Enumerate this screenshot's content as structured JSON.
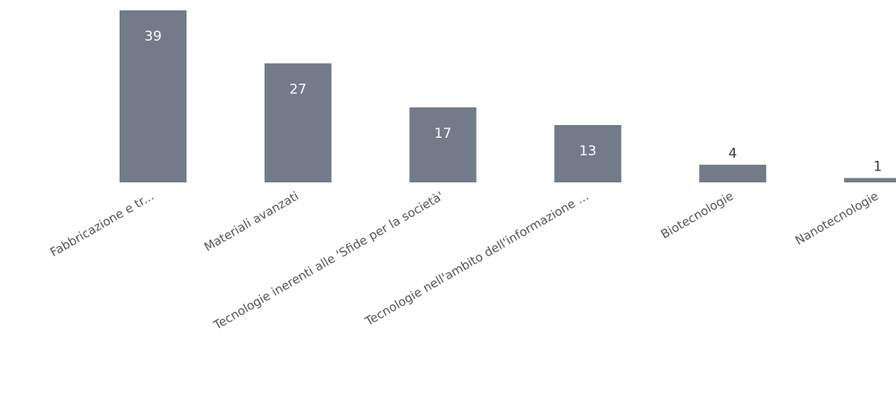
{
  "chart_data": {
    "type": "bar",
    "title": "",
    "xlabel": "",
    "ylabel": "",
    "categories": [
      "Fabbricazione e tr...",
      "Materiali avanzati",
      "Tecnologie inerenti alle 'Sfide per la società'",
      "Tecnologie nell'ambito dell'informazione ...",
      "Biotecnologie",
      "Nanotecnologie"
    ],
    "values": [
      39,
      27,
      17,
      13,
      4,
      1
    ],
    "ylim": [
      0,
      39
    ],
    "grid": false,
    "legend": "none",
    "bar_color": "#737b89",
    "label_color": "#3c3c3c",
    "inside_label_color": "#ffffff",
    "tick_color": "#555555"
  }
}
